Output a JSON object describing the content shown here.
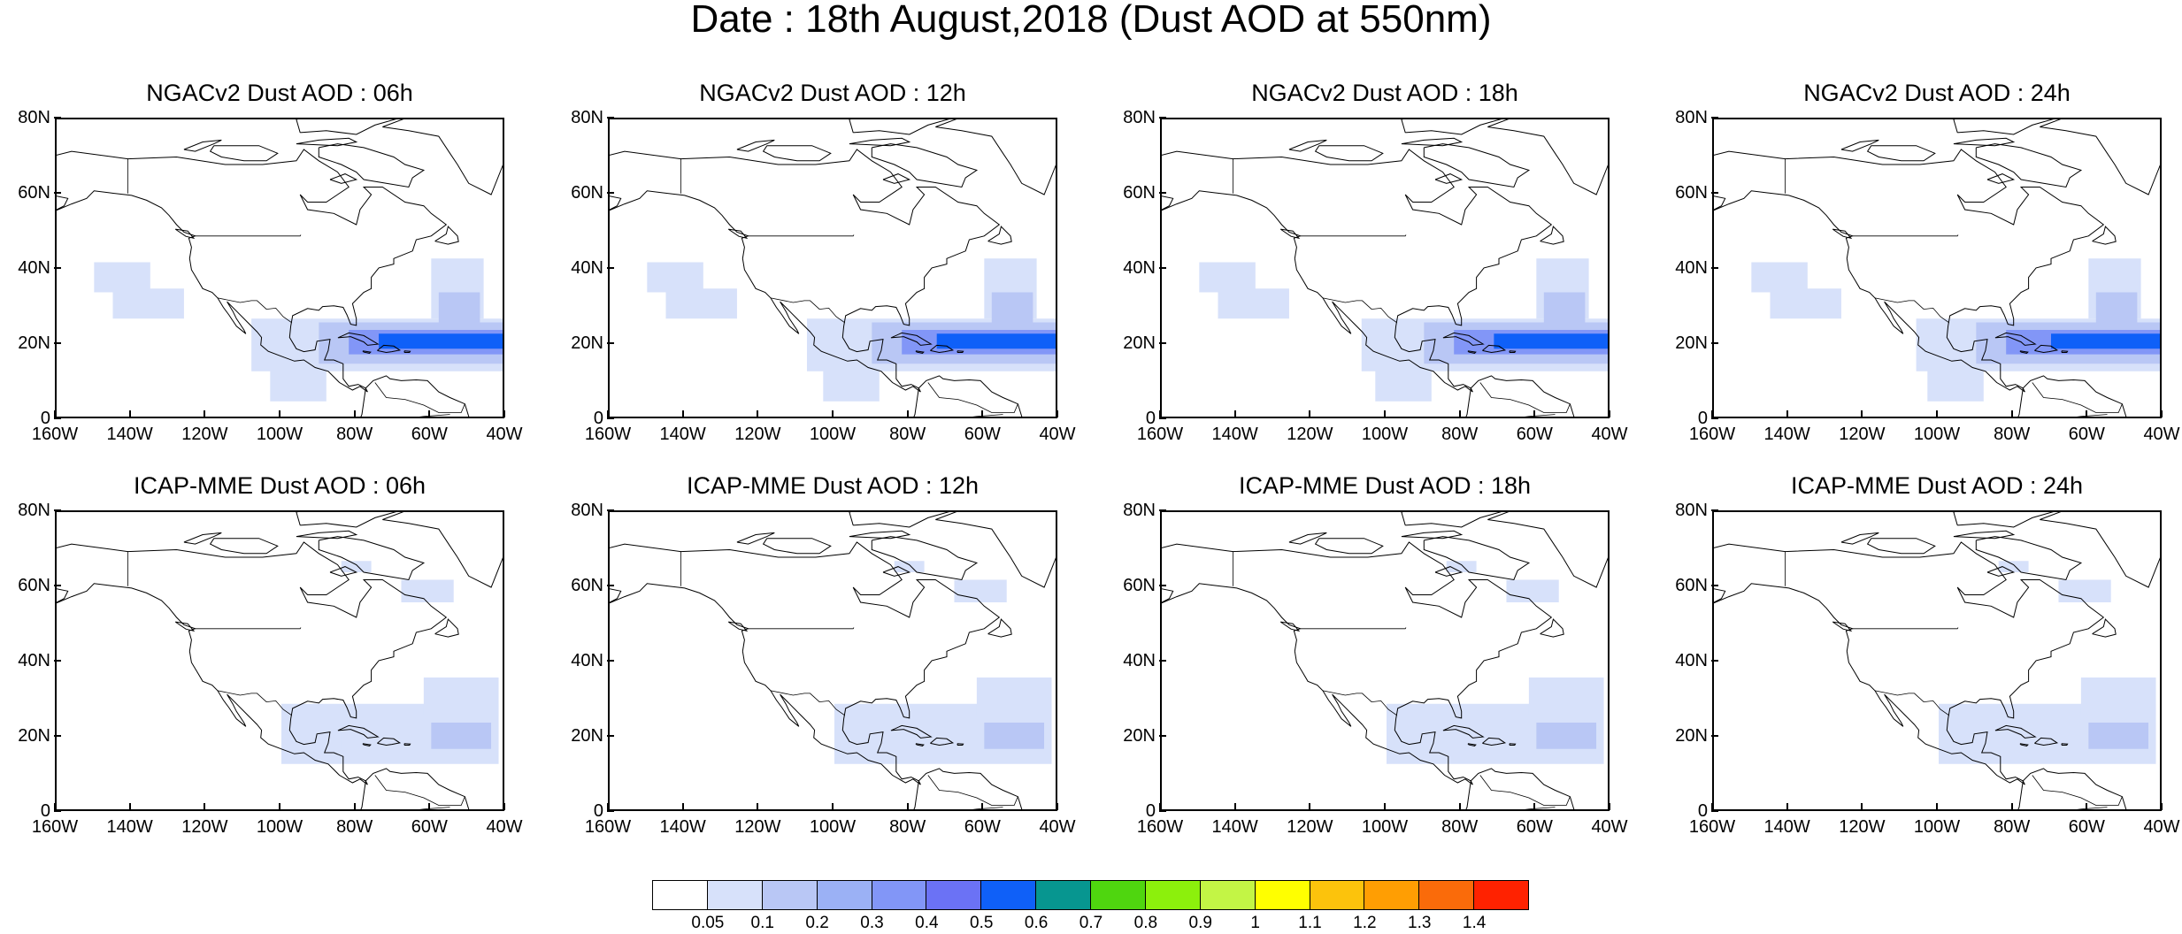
{
  "title": "Date : 18th August,2018 (Dust AOD at 550nm)",
  "panels": [
    {
      "title": "NGACv2 Dust AOD : 06h",
      "model": "ngac",
      "hour": "06h"
    },
    {
      "title": "NGACv2 Dust AOD : 12h",
      "model": "ngac",
      "hour": "12h"
    },
    {
      "title": "NGACv2 Dust AOD : 18h",
      "model": "ngac",
      "hour": "18h"
    },
    {
      "title": "NGACv2 Dust AOD : 24h",
      "model": "ngac",
      "hour": "24h"
    },
    {
      "title": "ICAP-MME Dust AOD : 06h",
      "model": "icap",
      "hour": "06h"
    },
    {
      "title": "ICAP-MME Dust AOD : 12h",
      "model": "icap",
      "hour": "12h"
    },
    {
      "title": "ICAP-MME Dust AOD : 18h",
      "model": "icap",
      "hour": "18h"
    },
    {
      "title": "ICAP-MME Dust AOD : 24h",
      "model": "icap",
      "hour": "24h"
    }
  ],
  "lat_labels": [
    "80N",
    "60N",
    "40N",
    "20N",
    "0"
  ],
  "lon_labels": [
    "160W",
    "140W",
    "120W",
    "100W",
    "80W",
    "60W",
    "40W"
  ],
  "colorbar": {
    "colors": [
      "#ffffff",
      "#d7e1fa",
      "#b9c7f5",
      "#9bb1f5",
      "#8296f7",
      "#6b72f5",
      "#0f60f8",
      "#079690",
      "#4fd60f",
      "#8cf00c",
      "#c3f545",
      "#ffff00",
      "#fcc30c",
      "#ff9e03",
      "#fa6b0a",
      "#ff2200"
    ],
    "labels": [
      "0.05",
      "0.1",
      "0.2",
      "0.3",
      "0.4",
      "0.5",
      "0.6",
      "0.7",
      "0.8",
      "0.9",
      "1",
      "1.1",
      "1.2",
      "1.3",
      "1.4"
    ]
  },
  "colors": {
    "light": "#d7e1fa",
    "mid": "#b9c7f5",
    "strong": "#8296f7",
    "core": "#0f60f8",
    "coast": "#000000"
  }
}
